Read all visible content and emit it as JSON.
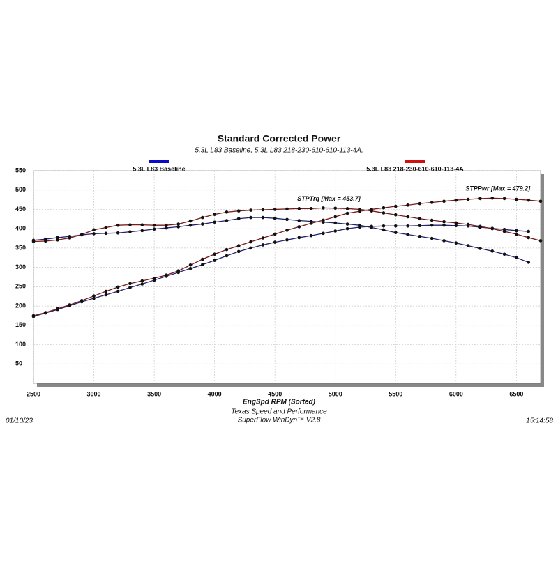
{
  "chart_data": {
    "type": "line",
    "title": "Standard Corrected Power",
    "subtitle": "5.3L L83 Baseline, 5.3L L83 218-230-610-610-113-4A,",
    "x_label": "EngSpd  RPM   (Sorted)",
    "footer": [
      "Texas Speed and Performance",
      "SuperFlow WinDyn™  V2.8"
    ],
    "date": "01/10/23",
    "time": "15:14:58",
    "annotations": [
      {
        "text": "STPTrq [Max = 453.7]",
        "x": 4900,
        "y": 453.7
      },
      {
        "text": "STPPwr [Max = 479.2]",
        "x": 6300,
        "y": 479.2
      }
    ],
    "annotation_color": "#cc1111",
    "x": [
      2500,
      2600,
      2700,
      2800,
      2900,
      3000,
      3100,
      3200,
      3300,
      3400,
      3500,
      3600,
      3700,
      3800,
      3900,
      4000,
      4100,
      4200,
      4300,
      4400,
      4500,
      4600,
      4700,
      4800,
      4900,
      5000,
      5100,
      5200,
      5300,
      5400,
      5500,
      5600,
      5700,
      5800,
      5900,
      6000,
      6100,
      6200,
      6300,
      6400,
      6500,
      6600,
      6700
    ],
    "xlim": [
      2500,
      6700
    ],
    "xticks": [
      2500,
      3000,
      3500,
      4000,
      4500,
      5000,
      5500,
      6000,
      6500
    ],
    "ylim": [
      0,
      550
    ],
    "yticks": [
      50,
      100,
      150,
      200,
      250,
      300,
      350,
      400,
      450,
      500,
      550
    ],
    "grid": true,
    "series": [
      {
        "name": "5.3L L83 Baseline",
        "color": "#0a0ac8",
        "line_color": "#22226e",
        "torque": [
          370,
          373,
          377,
          380,
          384,
          387,
          388,
          389,
          392,
          395,
          399,
          402,
          405,
          409,
          412,
          417,
          421,
          426,
          429,
          429,
          427,
          424,
          421,
          419,
          417,
          415,
          412,
          409,
          403,
          397,
          390,
          385,
          380,
          375,
          369,
          363,
          356,
          349,
          342,
          334,
          325,
          313,
          null
        ],
        "power": [
          173,
          182,
          191,
          201,
          211,
          220,
          229,
          238,
          248,
          257,
          267,
          277,
          287,
          297,
          307,
          318,
          330,
          341,
          350,
          358,
          365,
          371,
          377,
          382,
          388,
          394,
          400,
          404,
          406,
          407,
          407,
          407,
          408,
          409,
          409,
          408,
          407,
          404,
          401,
          398,
          395,
          393,
          null
        ]
      },
      {
        "name": "5.3L L83 218-230-610-610-113-4A",
        "color": "#d01010",
        "line_color": "#7a1a1a",
        "torque": [
          367,
          368,
          371,
          376,
          385,
          397,
          403,
          409,
          410,
          410,
          409,
          409,
          412,
          420,
          429,
          437,
          443,
          446,
          448,
          449,
          450,
          451,
          452,
          452,
          453.7,
          453,
          452,
          450,
          446,
          441,
          436,
          431,
          426,
          422,
          418,
          415,
          411,
          406,
          400,
          393,
          386,
          377,
          369
        ],
        "power": [
          175,
          183,
          193,
          203,
          214,
          226,
          238,
          249,
          258,
          265,
          272,
          280,
          291,
          306,
          321,
          334,
          346,
          356,
          366,
          376,
          386,
          396,
          405,
          414,
          422,
          431,
          440,
          445,
          450,
          454,
          458,
          461,
          465,
          468,
          471,
          474,
          476,
          478,
          479.2,
          478,
          476,
          474,
          471
        ]
      }
    ]
  }
}
